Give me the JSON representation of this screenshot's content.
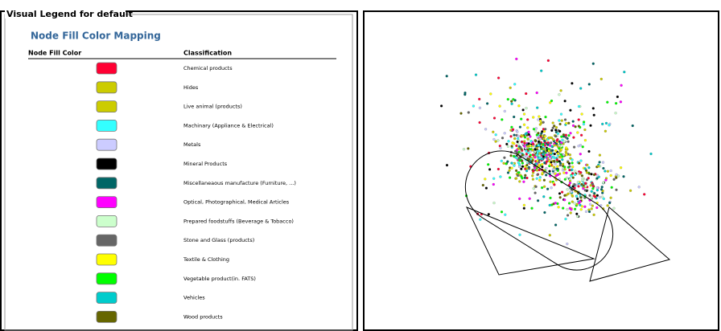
{
  "legend": {
    "frame_title": "Visual Legend for default",
    "heading": "Node Fill Color Mapping",
    "columns": [
      "Node Fill Color",
      "Classification"
    ],
    "rows": [
      {
        "color": "#ff0033",
        "label": "Chemical products"
      },
      {
        "color": "#cccc00",
        "label": "Hides"
      },
      {
        "color": "#cccc00",
        "label": "Live animal (products)"
      },
      {
        "color": "#33ffff",
        "label": "Machinary (Appliance & Electrical)"
      },
      {
        "color": "#ccccff",
        "label": "Metals"
      },
      {
        "color": "#000000",
        "label": "Mineral Products"
      },
      {
        "color": "#006666",
        "label": "Miscellaneaous manufacture (Furniture, ...)"
      },
      {
        "color": "#ff00ff",
        "label": "Optical, Photographical, Medical Articles"
      },
      {
        "color": "#ccffcc",
        "label": "Prepared foodstuffs (Beverage & Tobacco)"
      },
      {
        "color": "#666666",
        "label": "Stone and Glass (products)"
      },
      {
        "color": "#ffff00",
        "label": "Textile & Clothing"
      },
      {
        "color": "#00ff00",
        "label": "Vegetable product(in. FATS)"
      },
      {
        "color": "#00cccc",
        "label": "Vehicles"
      },
      {
        "color": "#666600",
        "label": "Wood products"
      }
    ]
  }
}
